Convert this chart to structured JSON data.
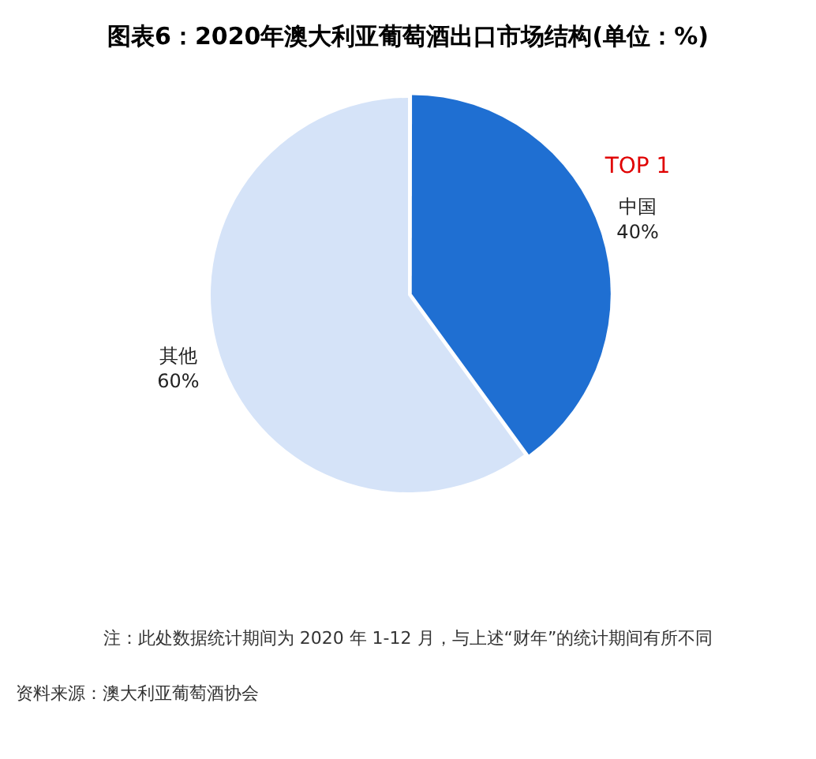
{
  "chart_data": {
    "type": "pie",
    "title": "图表6：2020年澳大利亚葡萄酒出口市场结构(单位：%)",
    "categories": [
      "中国",
      "其他"
    ],
    "values": [
      40,
      60
    ],
    "value_labels": [
      "40%",
      "60%"
    ],
    "colors": [
      "#1f6fd2",
      "#d5e3f8"
    ],
    "annotations": [
      {
        "text": "TOP 1",
        "x": "中国"
      },
      "注：此处数据统计期间为 2020 年 1-12 月，与上述“财年”的统计期间有所不同",
      "资料来源：澳大利亚葡萄酒协会"
    ]
  }
}
